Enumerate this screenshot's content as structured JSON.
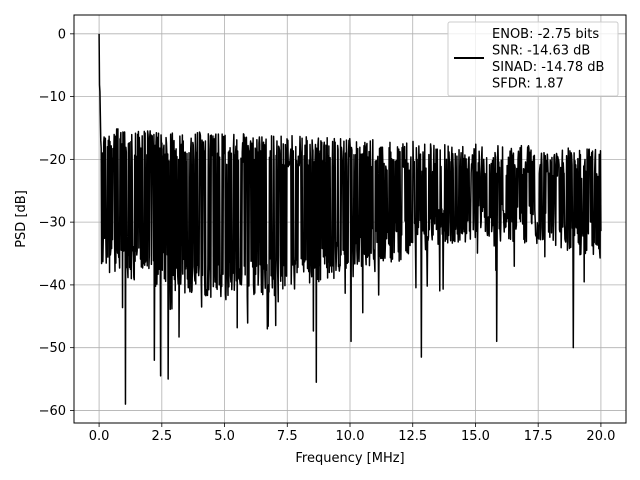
{
  "chart_data": {
    "type": "line",
    "title": "",
    "xlabel": "Frequency [MHz]",
    "ylabel": "PSD [dB]",
    "xlim": [
      -1.0,
      21.0
    ],
    "ylim": [
      -62.0,
      3.0
    ],
    "xticks": [
      0.0,
      2.5,
      5.0,
      7.5,
      10.0,
      12.5,
      15.0,
      17.5,
      20.0
    ],
    "xtick_labels": [
      "0.0",
      "2.5",
      "5.0",
      "7.5",
      "10.0",
      "12.5",
      "15.0",
      "17.5",
      "20.0"
    ],
    "yticks": [
      0,
      -10,
      -20,
      -30,
      -40,
      -50,
      -60
    ],
    "ytick_labels": [
      "0",
      "−10",
      "−20",
      "−30",
      "−40",
      "−50",
      "−60"
    ],
    "grid": true,
    "legend": {
      "placement": "top-right",
      "lines": [
        "ENOB: -2.75 bits",
        "SNR: -14.63 dB",
        "SINAD: -14.78 dB",
        "SFDR: 1.87"
      ]
    },
    "series": [
      {
        "color": "#000000",
        "x_start": 0.0,
        "x_end": 20.0,
        "peak": {
          "x": 0.02,
          "y": 0.0
        },
        "noise_floor_db": {
          "upper_envelope": [
            -15,
            -23
          ],
          "lower_envelope": [
            -33,
            -42
          ]
        },
        "notable_minima": [
          {
            "x": 1.05,
            "y": -59.0
          },
          {
            "x": 2.45,
            "y": -54.5
          },
          {
            "x": 2.75,
            "y": -55.0
          },
          {
            "x": 8.65,
            "y": -55.5
          },
          {
            "x": 12.85,
            "y": -51.5
          },
          {
            "x": 2.2,
            "y": -52.0
          },
          {
            "x": 6.7,
            "y": -47.0
          },
          {
            "x": 10.05,
            "y": -49.0
          },
          {
            "x": 15.85,
            "y": -49.0
          },
          {
            "x": 18.9,
            "y": -50.0
          }
        ]
      }
    ]
  }
}
